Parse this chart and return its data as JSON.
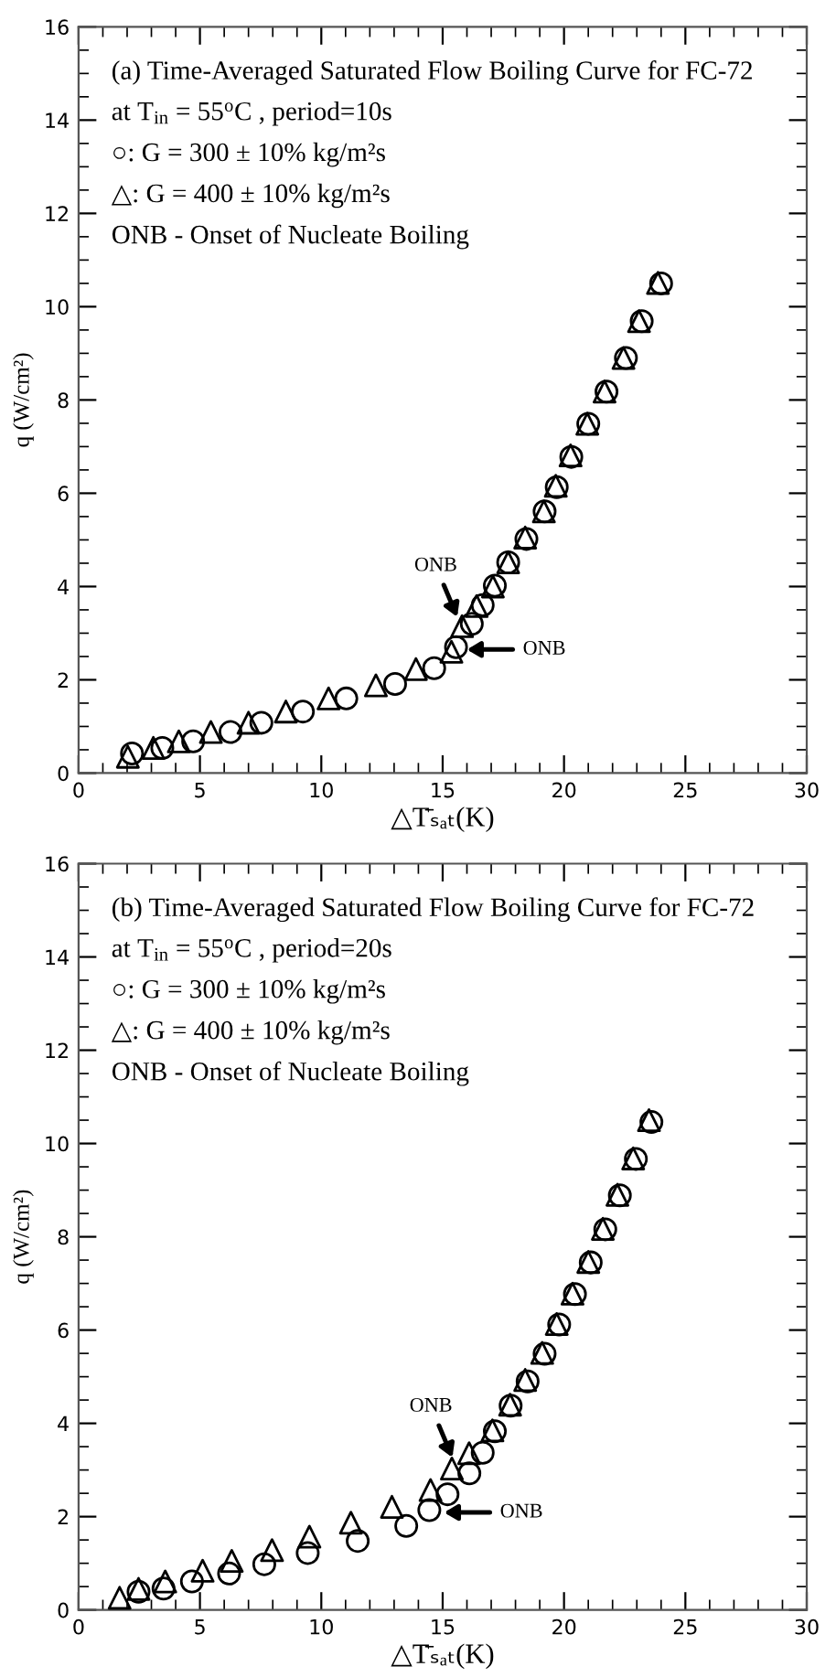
{
  "chart_data": [
    {
      "type": "scatter",
      "xlabel": "△T̄ₛₐₜ(K)",
      "ylabel": "q (W/cm²)",
      "xlim": [
        0,
        30
      ],
      "ylim": [
        0,
        16
      ],
      "xticks": [
        0,
        5,
        10,
        15,
        20,
        25,
        30
      ],
      "yticks": [
        0,
        2,
        4,
        6,
        8,
        10,
        12,
        14,
        16
      ],
      "grid": false,
      "legend": false,
      "annotations": [
        "(a) Time-Averaged Saturated Flow Boiling Curve for FC-72",
        "at T$_{in}$ = 55$^{o}$C , period=10s",
        "○: G = 300 ± 10% kg/m²s",
        "△: G = 400 ± 10% kg/m²s",
        "ONB - Onset of Nucleate Boiling",
        {
          "text": "ONB",
          "x": 15.6,
          "y": 3.35
        },
        {
          "text": "ONB",
          "x": 16.0,
          "y": 2.65
        }
      ],
      "series": [
        {
          "color": "#000000",
          "marker": "circle",
          "x": [
            2.2,
            3.45,
            4.72,
            6.26,
            7.53,
            9.24,
            11.03,
            13.04,
            14.65,
            15.55,
            16.2,
            16.65,
            17.15,
            17.7,
            18.45,
            19.2,
            19.7,
            20.3,
            21.0,
            21.75,
            22.55,
            23.2,
            24.0
          ],
          "values": [
            0.42,
            0.54,
            0.68,
            0.88,
            1.08,
            1.32,
            1.6,
            1.91,
            2.25,
            2.7,
            3.2,
            3.6,
            4.02,
            4.52,
            5.02,
            5.61,
            6.13,
            6.78,
            7.49,
            8.18,
            8.9,
            9.69,
            10.5
          ]
        },
        {
          "color": "#000000",
          "marker": "triangle",
          "x": [
            2.03,
            3.08,
            4.13,
            5.45,
            7.0,
            8.54,
            10.3,
            12.25,
            13.9,
            15.36,
            15.8,
            16.4,
            17.07,
            17.7,
            18.4,
            19.17,
            19.66,
            20.27,
            20.96,
            21.67,
            22.45,
            23.09,
            23.87
          ],
          "values": [
            0.35,
            0.54,
            0.68,
            0.88,
            1.08,
            1.32,
            1.6,
            1.88,
            2.23,
            2.6,
            3.15,
            3.58,
            4.0,
            4.52,
            5.05,
            5.61,
            6.16,
            6.81,
            7.49,
            8.18,
            8.9,
            9.69,
            10.51
          ]
        }
      ]
    },
    {
      "type": "scatter",
      "xlabel": "△T̄ₛₐₜ(K)",
      "ylabel": "q (W/cm²)",
      "xlim": [
        0,
        30
      ],
      "ylim": [
        0,
        16
      ],
      "xticks": [
        0,
        5,
        10,
        15,
        20,
        25,
        30
      ],
      "yticks": [
        0,
        2,
        4,
        6,
        8,
        10,
        12,
        14,
        16
      ],
      "grid": false,
      "legend": false,
      "annotations": [
        "(b) Time-Averaged Saturated Flow Boiling Curve for FC-72",
        "at T$_{in}$ = 55$^{o}$C , period=20s",
        "○: G = 300 ± 10% kg/m²s",
        "△: G = 400 ± 10% kg/m²s",
        "ONB - Onset of Nucleate Boiling",
        {
          "text": "ONB",
          "x": 15.4,
          "y": 3.27
        },
        {
          "text": "ONB",
          "x": 15.06,
          "y": 2.09
        }
      ],
      "series": [
        {
          "color": "#000000",
          "marker": "circle",
          "x": [
            2.47,
            3.5,
            4.67,
            6.2,
            7.65,
            9.44,
            11.5,
            13.5,
            14.45,
            15.2,
            16.1,
            16.65,
            17.15,
            17.8,
            18.5,
            19.2,
            19.8,
            20.45,
            21.1,
            21.7,
            22.3,
            22.96,
            23.6
          ],
          "values": [
            0.39,
            0.46,
            0.61,
            0.78,
            0.98,
            1.22,
            1.48,
            1.8,
            2.14,
            2.48,
            2.93,
            3.37,
            3.83,
            4.38,
            4.9,
            5.49,
            6.12,
            6.77,
            7.45,
            8.16,
            8.89,
            9.67,
            10.46
          ]
        },
        {
          "color": "#000000",
          "marker": "triangle",
          "x": [
            1.69,
            2.47,
            3.57,
            5.11,
            6.31,
            7.97,
            9.51,
            11.22,
            12.91,
            14.5,
            15.38,
            16.09,
            17.05,
            17.78,
            18.4,
            19.1,
            19.7,
            20.35,
            21.0,
            21.6,
            22.2,
            22.85,
            23.5
          ],
          "values": [
            0.26,
            0.45,
            0.61,
            0.84,
            1.05,
            1.28,
            1.57,
            1.87,
            2.21,
            2.57,
            3.03,
            3.36,
            3.85,
            4.4,
            4.93,
            5.51,
            6.13,
            6.78,
            7.46,
            8.17,
            8.9,
            9.68,
            10.5
          ]
        }
      ]
    }
  ]
}
